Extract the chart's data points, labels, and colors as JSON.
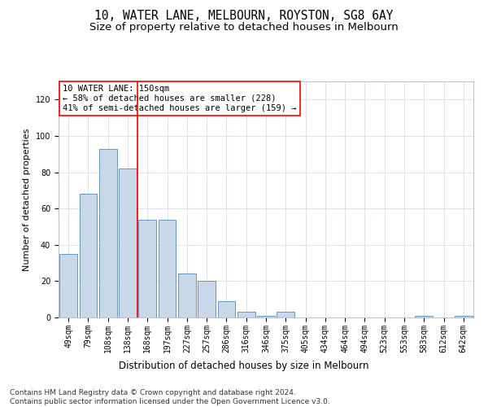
{
  "title": "10, WATER LANE, MELBOURN, ROYSTON, SG8 6AY",
  "subtitle": "Size of property relative to detached houses in Melbourn",
  "xlabel": "Distribution of detached houses by size in Melbourn",
  "ylabel": "Number of detached properties",
  "categories": [
    "49sqm",
    "79sqm",
    "108sqm",
    "138sqm",
    "168sqm",
    "197sqm",
    "227sqm",
    "257sqm",
    "286sqm",
    "316sqm",
    "346sqm",
    "375sqm",
    "405sqm",
    "434sqm",
    "464sqm",
    "494sqm",
    "523sqm",
    "553sqm",
    "583sqm",
    "612sqm",
    "642sqm"
  ],
  "values": [
    35,
    68,
    93,
    82,
    54,
    54,
    24,
    20,
    9,
    3,
    1,
    3,
    0,
    0,
    0,
    0,
    0,
    0,
    1,
    0,
    1
  ],
  "bar_color": "#c8d8e8",
  "bar_edge_color": "#5588bb",
  "red_line_index": 3,
  "ylim": [
    0,
    130
  ],
  "yticks": [
    0,
    20,
    40,
    60,
    80,
    100,
    120
  ],
  "annotation_text": "10 WATER LANE: 150sqm\n← 58% of detached houses are smaller (228)\n41% of semi-detached houses are larger (159) →",
  "footer_text": "Contains HM Land Registry data © Crown copyright and database right 2024.\nContains public sector information licensed under the Open Government Licence v3.0.",
  "bg_color": "white",
  "grid_color": "#dde0ee",
  "title_fontsize": 10.5,
  "subtitle_fontsize": 9.5,
  "ylabel_fontsize": 8,
  "xlabel_fontsize": 8.5,
  "tick_fontsize": 7,
  "annot_fontsize": 7.5,
  "footer_fontsize": 6.5
}
